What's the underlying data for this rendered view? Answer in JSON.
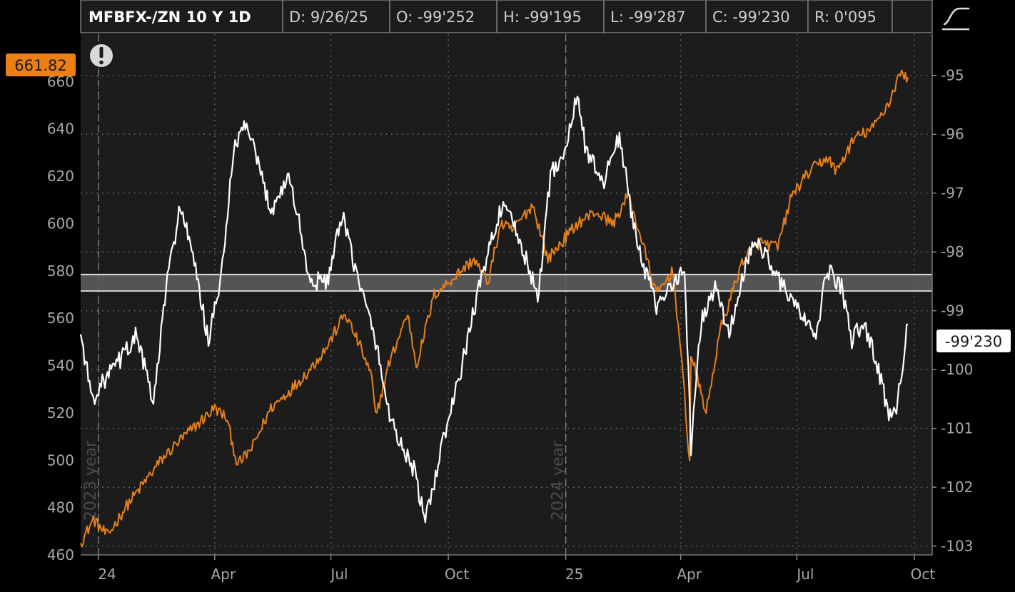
{
  "header": {
    "title": "MFBFX-/ZN 10 Y 1D",
    "date": "D: 9/26/25",
    "open": "O: -99'252",
    "high": "H: -99'195",
    "low": "L: -99'287",
    "close": "C: -99'230",
    "range": "R: 0'095"
  },
  "badges": {
    "left_value": "661.82",
    "right_value": "-99'230",
    "left_color": "#ee7f12",
    "right_color": "#ffffff"
  },
  "year_markers": [
    "2023 year",
    "2024 year"
  ],
  "colors": {
    "background": "#000000",
    "plot_background": "#1c1c1c",
    "grid": "#6a6a6a",
    "mfbfx_line": "#e8801a",
    "zn_line": "#ffffff",
    "band": "#5e5e5e"
  },
  "icons": {
    "alert": "exclamation-icon",
    "style": "chart-style-icon"
  },
  "chart_data": {
    "type": "line",
    "x_labels": [
      "24",
      "Apr",
      "Jul",
      "Oct",
      "25",
      "Apr",
      "Jul",
      "Oct"
    ],
    "x_ticks": [
      "2024-01",
      "2024-04",
      "2024-07",
      "2024-10",
      "2025-01",
      "2025-04",
      "2025-07",
      "2025-10"
    ],
    "x_range": [
      "2023-12-18",
      "2025-10-15"
    ],
    "left_axis": {
      "range": [
        460,
        680
      ],
      "ticks": [
        460,
        480,
        500,
        520,
        540,
        560,
        580,
        600,
        620,
        640,
        660
      ]
    },
    "right_axis": {
      "range": [
        -103.15,
        -94.3
      ],
      "ticks": [
        -103,
        -102,
        -101,
        -100,
        -99,
        -98,
        -97,
        -96,
        -95
      ]
    },
    "grid": true,
    "band": {
      "axis": "left",
      "range": [
        571.5,
        578.5
      ]
    },
    "series": [
      {
        "name": "MFBFX",
        "axis": "left",
        "points": [
          [
            "2023-12-18",
            465
          ],
          [
            "2023-12-28",
            475
          ],
          [
            "2024-01-08",
            468
          ],
          [
            "2024-01-22",
            480
          ],
          [
            "2024-02-05",
            490
          ],
          [
            "2024-02-19",
            500
          ],
          [
            "2024-03-04",
            508
          ],
          [
            "2024-03-18",
            515
          ],
          [
            "2024-04-01",
            522
          ],
          [
            "2024-04-10",
            518
          ],
          [
            "2024-04-19",
            498
          ],
          [
            "2024-04-30",
            505
          ],
          [
            "2024-05-15",
            522
          ],
          [
            "2024-05-31",
            530
          ],
          [
            "2024-06-14",
            538
          ],
          [
            "2024-06-28",
            548
          ],
          [
            "2024-07-12",
            562
          ],
          [
            "2024-07-24",
            548
          ],
          [
            "2024-08-02",
            535
          ],
          [
            "2024-08-05",
            518
          ],
          [
            "2024-08-15",
            540
          ],
          [
            "2024-08-30",
            562
          ],
          [
            "2024-09-06",
            540
          ],
          [
            "2024-09-20",
            570
          ],
          [
            "2024-10-07",
            578
          ],
          [
            "2024-10-21",
            585
          ],
          [
            "2024-11-01",
            575
          ],
          [
            "2024-11-11",
            600
          ],
          [
            "2024-11-20",
            597
          ],
          [
            "2024-12-06",
            608
          ],
          [
            "2024-12-18",
            585
          ],
          [
            "2025-01-10",
            600
          ],
          [
            "2025-01-24",
            605
          ],
          [
            "2025-02-07",
            600
          ],
          [
            "2025-02-19",
            612
          ],
          [
            "2025-03-03",
            590
          ],
          [
            "2025-03-13",
            570
          ],
          [
            "2025-03-26",
            580
          ],
          [
            "2025-04-04",
            528
          ],
          [
            "2025-04-08",
            498
          ],
          [
            "2025-04-09",
            545
          ],
          [
            "2025-04-21",
            520
          ],
          [
            "2025-05-02",
            555
          ],
          [
            "2025-05-12",
            572
          ],
          [
            "2025-05-20",
            585
          ],
          [
            "2025-06-02",
            592
          ],
          [
            "2025-06-16",
            590
          ],
          [
            "2025-06-27",
            612
          ],
          [
            "2025-07-11",
            622
          ],
          [
            "2025-07-25",
            628
          ],
          [
            "2025-08-01",
            622
          ],
          [
            "2025-08-15",
            636
          ],
          [
            "2025-08-29",
            640
          ],
          [
            "2025-09-12",
            652
          ],
          [
            "2025-09-19",
            663
          ],
          [
            "2025-09-26",
            661.82
          ]
        ]
      },
      {
        "name": "/ZN",
        "axis": "right",
        "points": [
          [
            "2023-12-18",
            -99.4
          ],
          [
            "2023-12-27",
            -100.5
          ],
          [
            "2024-01-05",
            -100.2
          ],
          [
            "2024-01-19",
            -99.8
          ],
          [
            "2024-01-31",
            -99.4
          ],
          [
            "2024-02-13",
            -100.6
          ],
          [
            "2024-02-23",
            -98.6
          ],
          [
            "2024-03-05",
            -97.2
          ],
          [
            "2024-03-15",
            -98.1
          ],
          [
            "2024-03-27",
            -99.5
          ],
          [
            "2024-04-05",
            -98.6
          ],
          [
            "2024-04-16",
            -96.3
          ],
          [
            "2024-04-25",
            -95.8
          ],
          [
            "2024-05-06",
            -96.6
          ],
          [
            "2024-05-15",
            -97.3
          ],
          [
            "2024-05-29",
            -96.7
          ],
          [
            "2024-06-07",
            -97.6
          ],
          [
            "2024-06-14",
            -98.5
          ],
          [
            "2024-06-28",
            -98.5
          ],
          [
            "2024-07-10",
            -97.4
          ],
          [
            "2024-07-24",
            -98.6
          ],
          [
            "2024-08-05",
            -99.5
          ],
          [
            "2024-08-14",
            -100.6
          ],
          [
            "2024-08-23",
            -101.2
          ],
          [
            "2024-09-04",
            -101.7
          ],
          [
            "2024-09-13",
            -102.6
          ],
          [
            "2024-09-27",
            -101.2
          ],
          [
            "2024-10-09",
            -100.2
          ],
          [
            "2024-10-22",
            -98.9
          ],
          [
            "2024-11-01",
            -98.0
          ],
          [
            "2024-11-12",
            -97.2
          ],
          [
            "2024-11-22",
            -97.6
          ],
          [
            "2024-12-02",
            -98.2
          ],
          [
            "2024-12-10",
            -98.8
          ],
          [
            "2024-12-20",
            -96.7
          ],
          [
            "2025-01-02",
            -96.2
          ],
          [
            "2025-01-10",
            -95.3
          ],
          [
            "2025-01-17",
            -96.3
          ],
          [
            "2025-01-31",
            -96.8
          ],
          [
            "2025-02-12",
            -96.0
          ],
          [
            "2025-02-21",
            -97.3
          ],
          [
            "2025-03-04",
            -98.3
          ],
          [
            "2025-03-14",
            -99.0
          ],
          [
            "2025-03-25",
            -98.5
          ],
          [
            "2025-04-04",
            -98.3
          ],
          [
            "2025-04-09",
            -101.3
          ],
          [
            "2025-04-17",
            -99.2
          ],
          [
            "2025-04-28",
            -98.6
          ],
          [
            "2025-05-09",
            -99.4
          ],
          [
            "2025-05-21",
            -98.3
          ],
          [
            "2025-05-30",
            -97.8
          ],
          [
            "2025-06-11",
            -98.2
          ],
          [
            "2025-06-20",
            -98.6
          ],
          [
            "2025-07-03",
            -99.0
          ],
          [
            "2025-07-15",
            -99.5
          ],
          [
            "2025-07-25",
            -98.3
          ],
          [
            "2025-08-05",
            -98.6
          ],
          [
            "2025-08-13",
            -99.5
          ],
          [
            "2025-08-22",
            -99.2
          ],
          [
            "2025-09-02",
            -99.9
          ],
          [
            "2025-09-11",
            -100.8
          ],
          [
            "2025-09-17",
            -100.6
          ],
          [
            "2025-09-26",
            -99.23
          ]
        ]
      }
    ]
  }
}
